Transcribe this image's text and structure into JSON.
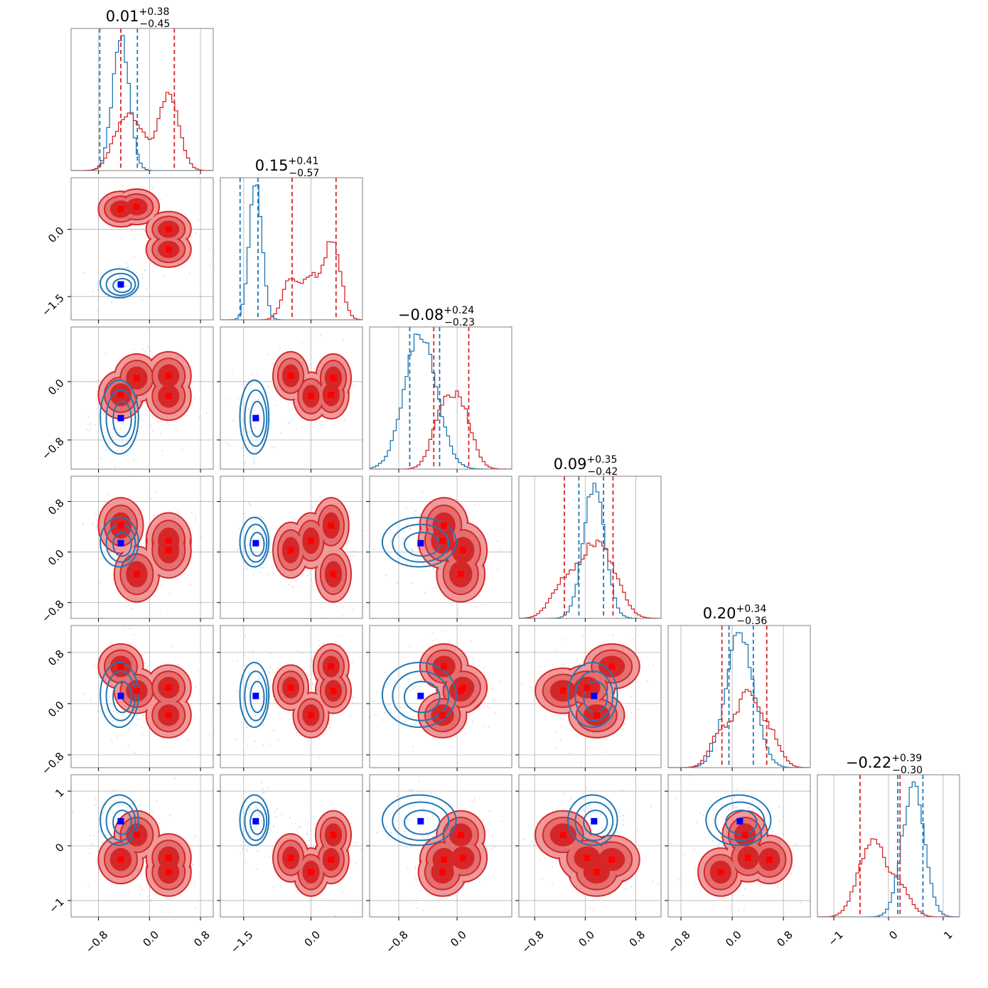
{
  "chart_data": {
    "type": "corner",
    "n_params": 6,
    "colors": {
      "blue": "#1f77b4",
      "red": "#d62728",
      "marker_blue": "#0000ff",
      "marker_red": "#ff0000",
      "grid": "#b0b0b0"
    },
    "titles": [
      {
        "main": "0.01",
        "upper": "+0.38",
        "lower": "−0.45"
      },
      {
        "main": "0.15",
        "upper": "+0.41",
        "lower": "−0.57"
      },
      {
        "main": "−0.08",
        "upper": "+0.24",
        "lower": "−0.23"
      },
      {
        "main": "0.09",
        "upper": "+0.35",
        "lower": "−0.42"
      },
      {
        "main": "0.20",
        "upper": "+0.34",
        "lower": "−0.36"
      },
      {
        "main": "−0.22",
        "upper": "+0.39",
        "lower": "−0.30"
      }
    ],
    "ranges": [
      [
        -1.23,
        1.0
      ],
      [
        -2.02,
        1.15
      ],
      [
        -1.2,
        0.75
      ],
      [
        -1.05,
        1.2
      ],
      [
        -1.0,
        1.22
      ],
      [
        -1.3,
        1.3
      ]
    ],
    "x_ticks": [
      {
        "values": [
          -0.8,
          0.0,
          0.8
        ],
        "labels": [
          "−0.8",
          "0.0",
          "0.8"
        ]
      },
      {
        "values": [
          -1.5,
          0.0
        ],
        "labels": [
          "−1.5",
          "0.0"
        ]
      },
      {
        "values": [
          -0.8,
          0.0
        ],
        "labels": [
          "−0.8",
          "0.0"
        ]
      },
      {
        "values": [
          -0.8,
          0.0,
          0.8
        ],
        "labels": [
          "−0.8",
          "0.0",
          "0.8"
        ]
      },
      {
        "values": [
          -0.8,
          0.0,
          0.8
        ],
        "labels": [
          "−0.8",
          "0.0",
          "0.8"
        ]
      },
      {
        "values": [
          -1,
          0,
          1
        ],
        "labels": [
          "−1",
          "0",
          "1"
        ]
      }
    ],
    "y_ticks": [
      null,
      {
        "values": [
          0.0,
          -1.5
        ],
        "labels": [
          "0.0",
          "−1.5"
        ]
      },
      {
        "values": [
          0.0,
          -0.8
        ],
        "labels": [
          "0.0",
          "−0.8"
        ]
      },
      {
        "values": [
          0.8,
          0.0,
          -0.8
        ],
        "labels": [
          "0.8",
          "0.0",
          "−0.8"
        ]
      },
      {
        "values": [
          0.8,
          0.0,
          -0.8
        ],
        "labels": [
          "0.8",
          "0.0",
          "−0.8"
        ]
      },
      {
        "values": [
          1,
          0,
          -1
        ],
        "labels": [
          "1",
          "0",
          "−1"
        ]
      }
    ],
    "blue_quantiles": [
      [
        -0.78,
        -0.19
      ],
      [
        -1.58,
        -1.18
      ],
      [
        -0.65,
        -0.24
      ],
      [
        -0.1,
        0.29
      ],
      [
        -0.05,
        0.33
      ],
      [
        0.17,
        0.63
      ]
    ],
    "red_quantiles": [
      [
        -0.45,
        0.39
      ],
      [
        -0.42,
        0.56
      ],
      [
        -0.32,
        0.16
      ],
      [
        -0.33,
        0.44
      ],
      [
        -0.16,
        0.54
      ],
      [
        -0.52,
        0.21
      ]
    ],
    "blue_components": [
      {
        "pos": [
          -0.45,
          -1.23,
          -0.5,
          0.14,
          0.12,
          0.45
        ],
        "sd": [
          0.13,
          0.14,
          0.22,
          0.17,
          0.22,
          0.2
        ]
      }
    ],
    "red_components": [
      {
        "pos": [
          -0.45,
          0.45,
          -0.18,
          0.42,
          0.58,
          -0.25
        ],
        "sd": [
          0.16,
          0.18,
          0.15,
          0.2,
          0.16,
          0.2
        ]
      },
      {
        "pos": [
          -0.2,
          0.5,
          0.05,
          -0.35,
          0.2,
          0.2
        ],
        "sd": [
          0.16,
          0.18,
          0.15,
          0.2,
          0.16,
          0.2
        ]
      },
      {
        "pos": [
          0.3,
          0.0,
          -0.2,
          0.18,
          -0.18,
          -0.48
        ],
        "sd": [
          0.16,
          0.18,
          0.15,
          0.2,
          0.16,
          0.2
        ]
      },
      {
        "pos": [
          0.3,
          -0.45,
          0.08,
          0.03,
          0.25,
          -0.22
        ],
        "sd": [
          0.16,
          0.18,
          0.15,
          0.2,
          0.16,
          0.2
        ]
      }
    ],
    "blue_marker": [
      -0.45,
      -1.23,
      -0.5,
      0.14,
      0.12,
      0.45
    ],
    "red_markers": [
      [
        -0.45,
        0.45,
        -0.18,
        0.42,
        0.58,
        -0.25
      ],
      [
        -0.2,
        0.5,
        0.05,
        -0.35,
        0.2,
        0.2
      ],
      [
        0.3,
        0.0,
        -0.2,
        0.18,
        -0.18,
        -0.48
      ],
      [
        0.3,
        -0.45,
        0.08,
        0.03,
        0.25,
        -0.22
      ]
    ]
  }
}
